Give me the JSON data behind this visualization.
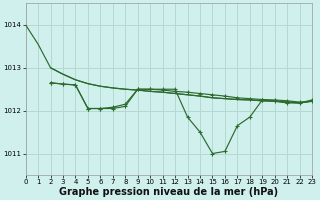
{
  "background_color": "#cff0ec",
  "grid_color": "#b5d9d0",
  "line_color": "#2d6a2d",
  "xlabel": "Graphe pression niveau de la mer (hPa)",
  "xlabel_fontsize": 7,
  "ylim": [
    1010.5,
    1014.5
  ],
  "xlim": [
    0,
    23
  ],
  "yticks": [
    1011,
    1012,
    1013,
    1014
  ],
  "xticks": [
    0,
    1,
    2,
    3,
    4,
    5,
    6,
    7,
    8,
    9,
    10,
    11,
    12,
    13,
    14,
    15,
    16,
    17,
    18,
    19,
    20,
    21,
    22,
    23
  ],
  "line_upper1_x": [
    0,
    1,
    2,
    3,
    4,
    5,
    6,
    7,
    8,
    9,
    10,
    11,
    12,
    13,
    14,
    15,
    16,
    17,
    18,
    19,
    20,
    21,
    22,
    23
  ],
  "line_upper1_y": [
    1014.0,
    1013.55,
    1013.0,
    1012.85,
    1012.72,
    1012.63,
    1012.57,
    1012.53,
    1012.5,
    1012.48,
    1012.45,
    1012.43,
    1012.4,
    1012.37,
    1012.34,
    1012.3,
    1012.28,
    1012.26,
    1012.25,
    1012.23,
    1012.22,
    1012.2,
    1012.18,
    1012.22
  ],
  "line_upper2_x": [
    2,
    3,
    4,
    5,
    6,
    7,
    8,
    9,
    10,
    11,
    12,
    13,
    14,
    15,
    16,
    17,
    18,
    19,
    20,
    21,
    22,
    23
  ],
  "line_upper2_y": [
    1013.0,
    1012.85,
    1012.72,
    1012.63,
    1012.57,
    1012.53,
    1012.5,
    1012.48,
    1012.45,
    1012.43,
    1012.4,
    1012.37,
    1012.34,
    1012.3,
    1012.28,
    1012.26,
    1012.25,
    1012.23,
    1012.22,
    1012.2,
    1012.18,
    1012.22
  ],
  "line_marked1_x": [
    2,
    3,
    4,
    5,
    6,
    7,
    8,
    9,
    10,
    11,
    12,
    13,
    14,
    15,
    16,
    17,
    18,
    19,
    20,
    21,
    22,
    23
  ],
  "line_marked1_y": [
    1012.65,
    1012.62,
    1012.6,
    1012.05,
    1012.05,
    1012.05,
    1012.1,
    1012.5,
    1012.5,
    1012.48,
    1012.45,
    1012.43,
    1012.4,
    1012.37,
    1012.34,
    1012.3,
    1012.28,
    1012.26,
    1012.25,
    1012.23,
    1012.2,
    1012.22
  ],
  "line_marked2_x": [
    2,
    3,
    4,
    5,
    6,
    7,
    8,
    9,
    10,
    11,
    12,
    13,
    14,
    15,
    16,
    17,
    18,
    19,
    20,
    21,
    22,
    23
  ],
  "line_marked2_y": [
    1012.65,
    1012.62,
    1012.6,
    1012.05,
    1012.05,
    1012.08,
    1012.15,
    1012.5,
    1012.5,
    1012.5,
    1012.5,
    1011.85,
    1011.5,
    1011.0,
    1011.05,
    1011.65,
    1011.85,
    1012.25,
    1012.22,
    1012.18,
    1012.18,
    1012.25
  ],
  "marker_size": 2.5,
  "linewidth": 0.85
}
